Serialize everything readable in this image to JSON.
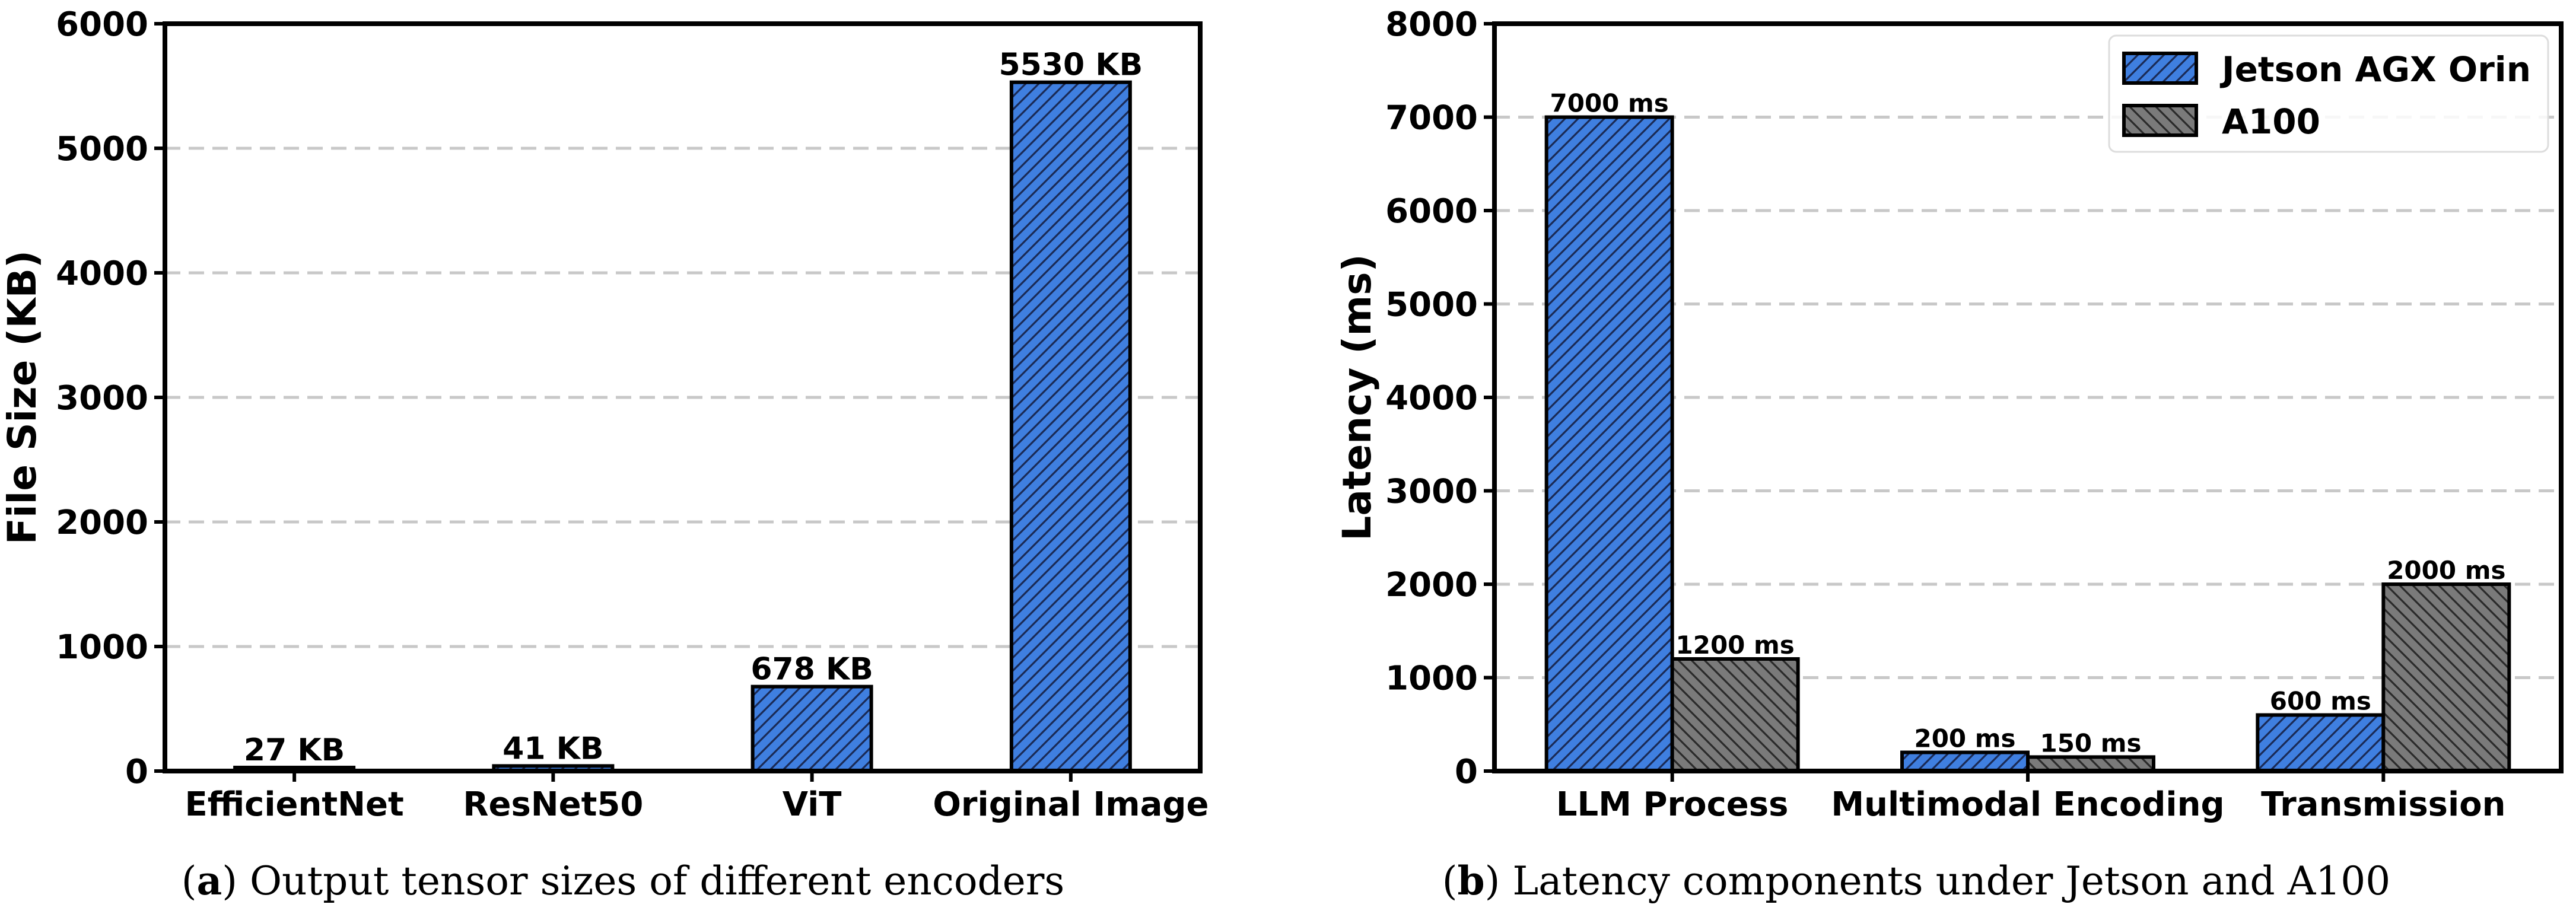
{
  "chart_data": [
    {
      "type": "bar",
      "caption_letter": "a",
      "caption_text": "Output tensor sizes of different encoders",
      "categories": [
        "EfficientNet",
        "ResNet50",
        "ViT",
        "Original Image"
      ],
      "values": [
        27,
        41,
        678,
        5530
      ],
      "data_labels": [
        "27 KB",
        "41 KB",
        "678 KB",
        "5530 KB"
      ],
      "ylabel": "File Size (KB)",
      "ylim": [
        0,
        6000
      ],
      "yticks": [
        "0",
        "1000",
        "2000",
        "3000",
        "4000",
        "5000",
        "6000"
      ],
      "grid": "horizontal dashed",
      "color": "#3f7fe0",
      "hatch": "forward-diagonal"
    },
    {
      "type": "bar",
      "caption_letter": "b",
      "caption_text": "Latency components under Jetson and A100",
      "categories": [
        "LLM Process",
        "Multimodal Encoding",
        "Transmission"
      ],
      "series": [
        {
          "name": "Jetson AGX Orin",
          "values": [
            7000,
            200,
            600
          ],
          "data_labels": [
            "7000 ms",
            "200 ms",
            "600 ms"
          ],
          "color": "#3f7fe0",
          "hatch": "forward-diagonal"
        },
        {
          "name": "A100",
          "values": [
            1200,
            150,
            2000
          ],
          "data_labels": [
            "1200 ms",
            "150 ms",
            "2000 ms"
          ],
          "color": "#7a7a7a",
          "hatch": "back-diagonal"
        }
      ],
      "ylabel": "Latency (ms)",
      "ylim": [
        0,
        8000
      ],
      "yticks": [
        "0",
        "1000",
        "2000",
        "3000",
        "4000",
        "5000",
        "6000",
        "7000",
        "8000"
      ],
      "grid": "horizontal dashed",
      "legend": "top-right"
    }
  ]
}
